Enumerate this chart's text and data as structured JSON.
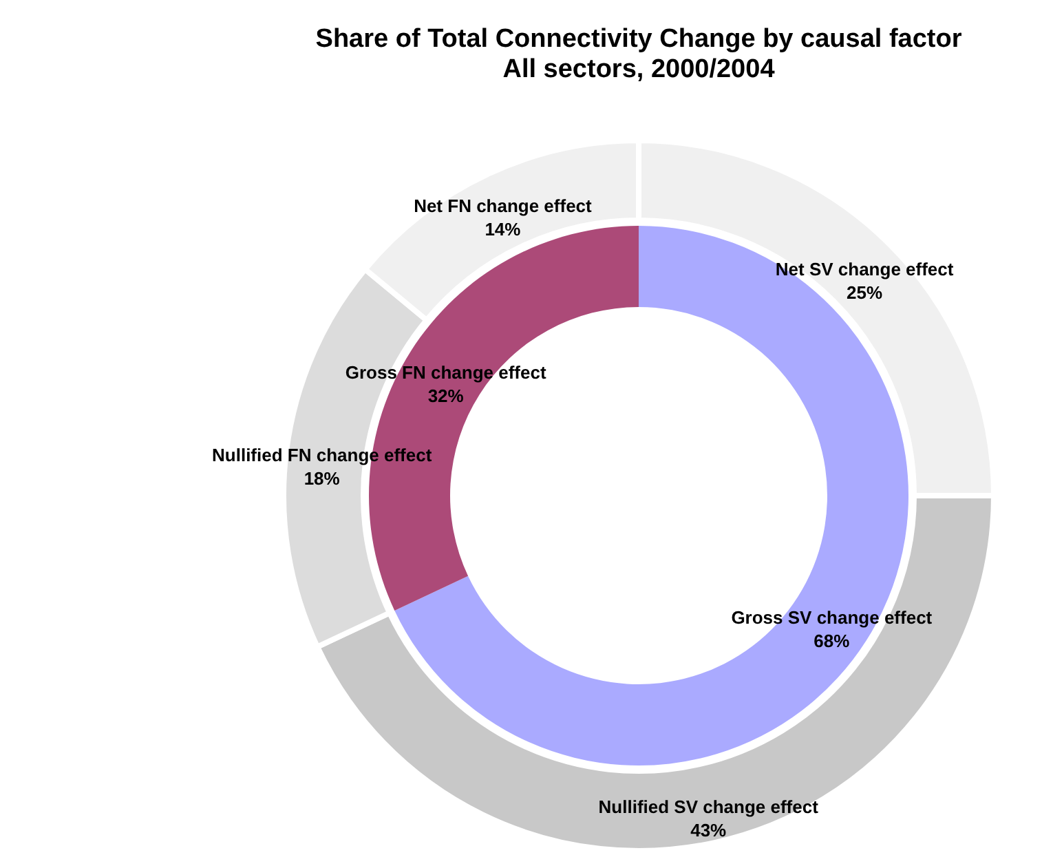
{
  "chart_data": [
    {
      "type": "donut",
      "title": "Share of Total Connectivity Change by causal factor",
      "subtitle": "All sectors, 2000/2004",
      "categories": [
        "Net SV change effect",
        "Nullified SV change effect",
        "Nullified FN change effect",
        "Net FN change effect"
      ],
      "values": [
        25,
        43,
        18,
        14
      ],
      "value_labels": [
        "25%",
        "43%",
        "18%",
        "14%"
      ],
      "colors": [
        "#f0f0f0",
        "#c8c8c8",
        "#dcdcdc",
        "#f0f0f0"
      ],
      "legend": false
    },
    {
      "type": "donut",
      "categories": [
        "Gross SV change effect",
        "Gross FN change effect"
      ],
      "values": [
        68,
        32
      ],
      "value_labels": [
        "68%",
        "32%"
      ],
      "colors": [
        "#aaaaff",
        "#ac4a78"
      ],
      "legend": false
    }
  ]
}
